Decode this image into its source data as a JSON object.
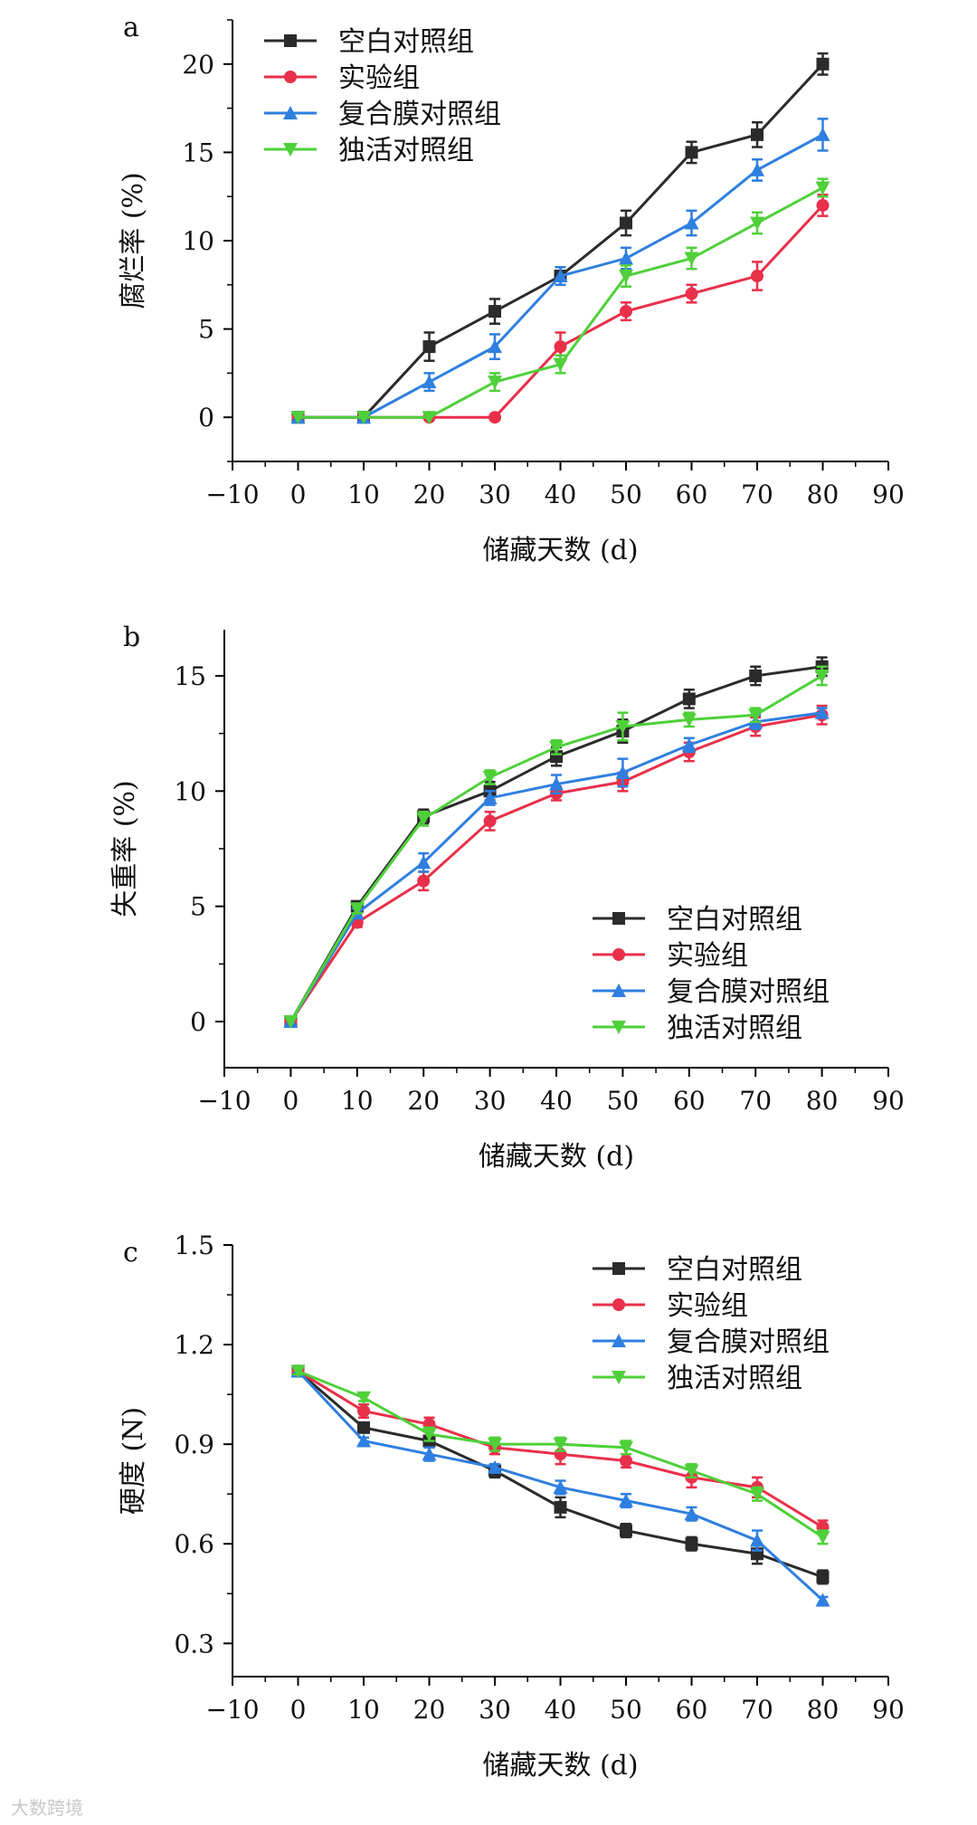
{
  "watermark": "大数跨境",
  "chart_data": [
    {
      "panel": "a",
      "type": "line",
      "xlabel": "储藏天数 (d)",
      "ylabel": "腐烂率 (%)",
      "xlim": [
        -10,
        90
      ],
      "ylim": [
        -2.5,
        22.5
      ],
      "xticks": [
        -10,
        0,
        10,
        20,
        30,
        40,
        50,
        60,
        70,
        80,
        90
      ],
      "xtick_labels": [
        "−10",
        "0",
        "10",
        "20",
        "30",
        "40",
        "50",
        "60",
        "70",
        "80",
        "90"
      ],
      "yticks": [
        0,
        5,
        10,
        15,
        20
      ],
      "ytick_labels": [
        "0",
        "5",
        "10",
        "15",
        "20"
      ],
      "legend_position": "top-left",
      "x": [
        0,
        10,
        20,
        30,
        40,
        50,
        60,
        70,
        80
      ],
      "series": [
        {
          "name": "空白对照组",
          "color": "#2b2b2b",
          "marker": "square",
          "values": [
            0,
            0,
            4,
            6,
            8,
            11,
            15,
            16,
            20
          ],
          "errors": [
            0,
            0,
            0.8,
            0.7,
            0.5,
            0.7,
            0.6,
            0.7,
            0.6
          ]
        },
        {
          "name": "实验组",
          "color": "#e8304a",
          "marker": "circle",
          "values": [
            0,
            0,
            0,
            0,
            4,
            6,
            7,
            8,
            12
          ],
          "errors": [
            0,
            0,
            0,
            0,
            0.8,
            0.5,
            0.5,
            0.8,
            0.6
          ]
        },
        {
          "name": "复合膜对照组",
          "color": "#2f7fe0",
          "marker": "triangle-up",
          "values": [
            0,
            0,
            2,
            4,
            8,
            9,
            11,
            14,
            16
          ],
          "errors": [
            0,
            0,
            0.5,
            0.7,
            0.5,
            0.6,
            0.7,
            0.6,
            0.9
          ]
        },
        {
          "name": "独活对照组",
          "color": "#4fd03a",
          "marker": "triangle-down",
          "values": [
            0,
            0,
            0,
            2,
            3,
            8,
            9,
            11,
            13
          ],
          "errors": [
            0,
            0,
            0,
            0.5,
            0.5,
            0.6,
            0.6,
            0.6,
            0.5
          ]
        }
      ]
    },
    {
      "panel": "b",
      "type": "line",
      "xlabel": "储藏天数 (d)",
      "ylabel": "失重率 (%)",
      "xlim": [
        -10,
        90
      ],
      "ylim": [
        -2,
        17
      ],
      "xticks": [
        -10,
        0,
        10,
        20,
        30,
        40,
        50,
        60,
        70,
        80,
        90
      ],
      "xtick_labels": [
        "−10",
        "0",
        "10",
        "20",
        "30",
        "40",
        "50",
        "60",
        "70",
        "80",
        "90"
      ],
      "yticks": [
        0,
        5,
        10,
        15
      ],
      "ytick_labels": [
        "0",
        "5",
        "10",
        "15"
      ],
      "legend_position": "bottom-right",
      "x": [
        0,
        10,
        20,
        30,
        40,
        50,
        60,
        70,
        80
      ],
      "series": [
        {
          "name": "空白对照组",
          "color": "#2b2b2b",
          "marker": "square",
          "values": [
            0,
            5.0,
            8.9,
            10.0,
            11.5,
            12.6,
            14.0,
            15.0,
            15.4
          ],
          "errors": [
            0,
            0.2,
            0.3,
            0.4,
            0.4,
            0.5,
            0.4,
            0.4,
            0.4
          ]
        },
        {
          "name": "实验组",
          "color": "#e8304a",
          "marker": "circle",
          "values": [
            0,
            4.3,
            6.1,
            8.7,
            9.9,
            10.4,
            11.7,
            12.8,
            13.3
          ],
          "errors": [
            0,
            0.2,
            0.4,
            0.4,
            0.3,
            0.4,
            0.4,
            0.4,
            0.4
          ]
        },
        {
          "name": "复合膜对照组",
          "color": "#2f7fe0",
          "marker": "triangle-up",
          "values": [
            0,
            4.7,
            6.9,
            9.7,
            10.3,
            10.8,
            12.0,
            13.0,
            13.4
          ],
          "errors": [
            0,
            0.2,
            0.4,
            0.3,
            0.4,
            0.6,
            0.3,
            0.3,
            0.2
          ]
        },
        {
          "name": "独活对照组",
          "color": "#4fd03a",
          "marker": "triangle-down",
          "values": [
            0,
            4.9,
            8.8,
            10.6,
            11.9,
            12.8,
            13.1,
            13.3,
            15.0
          ],
          "errors": [
            0,
            0.2,
            0.3,
            0.3,
            0.3,
            0.6,
            0.3,
            0.3,
            0.4
          ]
        }
      ]
    },
    {
      "panel": "c",
      "type": "line",
      "xlabel": "储藏天数 (d)",
      "ylabel": "硬度 (N)",
      "xlim": [
        -10,
        90
      ],
      "ylim": [
        0.2,
        1.5
      ],
      "xticks": [
        -10,
        0,
        10,
        20,
        30,
        40,
        50,
        60,
        70,
        80,
        90
      ],
      "xtick_labels": [
        "−10",
        "0",
        "10",
        "20",
        "30",
        "40",
        "50",
        "60",
        "70",
        "80",
        "90"
      ],
      "yticks": [
        0.3,
        0.6,
        0.9,
        1.2,
        1.5
      ],
      "ytick_labels": [
        "0.3",
        "0.6",
        "0.9",
        "1.2",
        "1.5"
      ],
      "legend_position": "top-right",
      "x": [
        0,
        10,
        20,
        30,
        40,
        50,
        60,
        70,
        80
      ],
      "series": [
        {
          "name": "空白对照组",
          "color": "#2b2b2b",
          "marker": "square",
          "values": [
            1.12,
            0.95,
            0.91,
            0.82,
            0.71,
            0.64,
            0.6,
            0.57,
            0.5
          ],
          "errors": [
            0.01,
            0.01,
            0.01,
            0.02,
            0.03,
            0.02,
            0.02,
            0.03,
            0.02
          ]
        },
        {
          "name": "实验组",
          "color": "#e8304a",
          "marker": "circle",
          "values": [
            1.12,
            1.0,
            0.96,
            0.89,
            0.87,
            0.85,
            0.8,
            0.77,
            0.65
          ],
          "errors": [
            0.01,
            0.02,
            0.02,
            0.02,
            0.03,
            0.02,
            0.03,
            0.03,
            0.02
          ]
        },
        {
          "name": "复合膜对照组",
          "color": "#2f7fe0",
          "marker": "triangle-up",
          "values": [
            1.12,
            0.91,
            0.87,
            0.83,
            0.77,
            0.73,
            0.69,
            0.61,
            0.43
          ],
          "errors": [
            0.01,
            0.01,
            0.02,
            0.01,
            0.02,
            0.02,
            0.02,
            0.03,
            0.01
          ]
        },
        {
          "name": "独活对照组",
          "color": "#4fd03a",
          "marker": "triangle-down",
          "values": [
            1.12,
            1.04,
            0.93,
            0.9,
            0.9,
            0.89,
            0.82,
            0.75,
            0.62
          ],
          "errors": [
            0.01,
            0.01,
            0.02,
            0.02,
            0.02,
            0.02,
            0.02,
            0.02,
            0.02
          ]
        }
      ]
    }
  ]
}
